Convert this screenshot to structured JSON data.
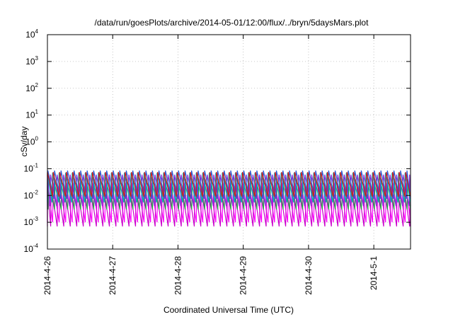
{
  "chart_data": {
    "type": "line",
    "title": "/data/run/goesPlots/archive/2014-05-01/12:00/flux/../bryn/5daysMars.plot",
    "xlabel": "Coordinated Universal Time (UTC)",
    "ylabel": "cSv/day",
    "yscale": "log",
    "ylim": [
      0.0001,
      10000
    ],
    "xlim": [
      "2014-04-26 00:00",
      "2014-05-01 13:30"
    ],
    "grid": true,
    "x_ticks": [
      "2014-4-26",
      "2014-4-27",
      "2014-4-28",
      "2014-4-29",
      "2014-4-30",
      "2014-5-1"
    ],
    "y_ticks": [
      {
        "base": "10",
        "exp": "-4",
        "value": 0.0001
      },
      {
        "base": "10",
        "exp": "-3",
        "value": 0.001
      },
      {
        "base": "10",
        "exp": "-2",
        "value": 0.01
      },
      {
        "base": "10",
        "exp": "-1",
        "value": 0.1
      },
      {
        "base": "10",
        "exp": "0",
        "value": 1
      },
      {
        "base": "10",
        "exp": "1",
        "value": 10
      },
      {
        "base": "10",
        "exp": "2",
        "value": 100
      },
      {
        "base": "10",
        "exp": "3",
        "value": 1000
      },
      {
        "base": "10",
        "exp": "4",
        "value": 10000
      }
    ],
    "pattern": {
      "description_free": true,
      "period_hours": 2.4,
      "start_date": "2014-04-26",
      "num_days": 5.5625
    },
    "series": [
      {
        "color": "#2f5bd3",
        "peak": 0.085,
        "trough": 0.0075,
        "phase": 0.0
      },
      {
        "color": "#00b3b3",
        "peak": 0.07,
        "trough": 0.0055,
        "phase": 0.03
      },
      {
        "color": "#8a2ad8",
        "peak": 0.06,
        "trough": 0.004,
        "phase": 0.06
      },
      {
        "color": "#2a9a4a",
        "peak": 0.04,
        "trough": 0.003,
        "phase": 0.09
      },
      {
        "color": "#ff00ff",
        "peak": 0.03,
        "trough": 0.001,
        "phase": 0.12
      },
      {
        "color": "#cc00cc",
        "peak": 0.022,
        "trough": 0.0007,
        "phase": 0.15
      },
      {
        "color": "#d01b1b",
        "peak": 0.075,
        "trough": 0.009,
        "phase": 0.02
      }
    ]
  }
}
